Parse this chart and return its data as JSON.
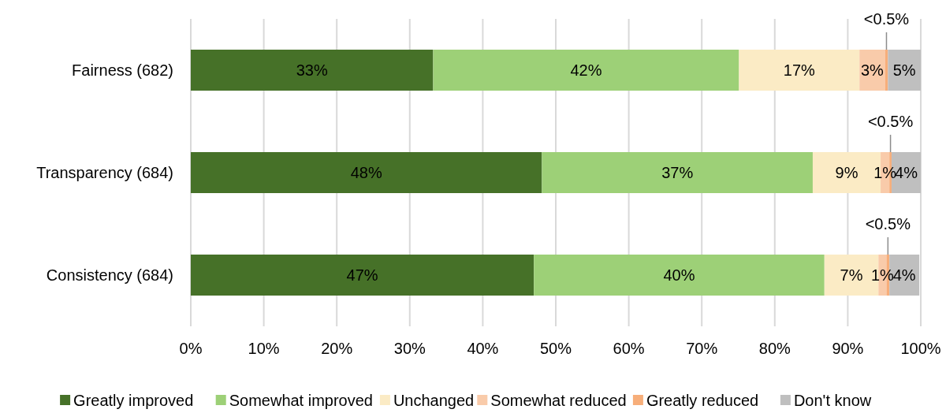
{
  "chart_data": {
    "type": "bar",
    "orientation": "horizontal",
    "stacked": true,
    "categories": [
      "Fairness (682)",
      "Transparency (684)",
      "Consistency (684)"
    ],
    "series": [
      {
        "name": "Greatly improved",
        "color": "#467128",
        "values": [
          33.2,
          48.1,
          47.0
        ],
        "value_labels": [
          "33%",
          "48%",
          "47%"
        ]
      },
      {
        "name": "Somewhat improved",
        "color": "#9dd077",
        "values": [
          41.9,
          37.1,
          39.8
        ],
        "value_labels": [
          "42%",
          "37%",
          "40%"
        ]
      },
      {
        "name": "Unchanged",
        "color": "#fbebc5",
        "values": [
          16.5,
          9.3,
          7.4
        ],
        "value_labels": [
          "17%",
          "9%",
          "7%"
        ]
      },
      {
        "name": "Somewhat reduced",
        "color": "#f9cbaa",
        "values": [
          3.5,
          1.2,
          1.1
        ],
        "value_labels": [
          "3%",
          "1%",
          "1%"
        ]
      },
      {
        "name": "Greatly reduced",
        "color": "#f7ae7a",
        "values": [
          0.4,
          0.3,
          0.4
        ],
        "value_labels": [
          "<0.5%",
          "<0.5%",
          "<0.5%"
        ]
      },
      {
        "name": "Don't know",
        "color": "#bfbfbf",
        "values": [
          4.5,
          4.0,
          4.1
        ],
        "value_labels": [
          "5%",
          "4%",
          "4%"
        ]
      }
    ],
    "xlim": [
      0,
      100
    ],
    "xticks": [
      {
        "value": 0,
        "label": "0%"
      },
      {
        "value": 10,
        "label": "10%"
      },
      {
        "value": 20,
        "label": "20%"
      },
      {
        "value": 30,
        "label": "30%"
      },
      {
        "value": 40,
        "label": "40%"
      },
      {
        "value": 50,
        "label": "50%"
      },
      {
        "value": 60,
        "label": "60%"
      },
      {
        "value": 70,
        "label": "70%"
      },
      {
        "value": 80,
        "label": "80%"
      },
      {
        "value": 90,
        "label": "90%"
      },
      {
        "value": 100,
        "label": "100%"
      }
    ],
    "grid": "x",
    "legend": "bottom"
  }
}
